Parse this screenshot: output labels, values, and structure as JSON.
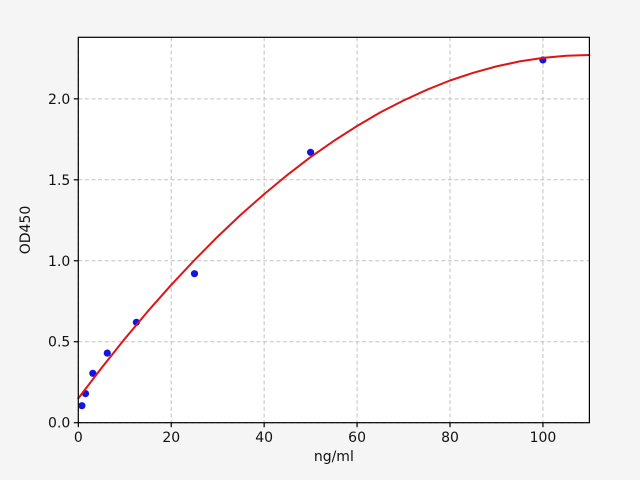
{
  "chart_data": {
    "type": "scatter",
    "title": "",
    "xlabel": "ng/ml",
    "ylabel": "OD450",
    "xlim": [
      0,
      110
    ],
    "ylim": [
      0,
      2.38
    ],
    "xticks": [
      0,
      20,
      40,
      60,
      80,
      100
    ],
    "xtick_labels": [
      "0",
      "20",
      "40",
      "60",
      "80",
      "100"
    ],
    "yticks": [
      0.0,
      0.5,
      1.0,
      1.5,
      2.0
    ],
    "ytick_labels": [
      "0.0",
      "0.5",
      "1.0",
      "1.5",
      "2.0"
    ],
    "grid": true,
    "grid_style": "dashed",
    "legend": "none",
    "series": [
      {
        "name": "standard-points",
        "type": "scatter",
        "marker": "circle",
        "color": "#1515dd",
        "x": [
          0.78,
          1.56,
          3.12,
          6.25,
          12.5,
          25,
          50,
          100
        ],
        "y": [
          0.105,
          0.18,
          0.305,
          0.43,
          0.62,
          0.92,
          1.67,
          2.24
        ]
      },
      {
        "name": "fit-curve",
        "type": "line",
        "color": "#dd1515",
        "x": [
          0,
          5,
          10,
          15,
          20,
          25,
          30,
          35,
          40,
          45,
          50,
          55,
          60,
          65,
          70,
          75,
          80,
          85,
          90,
          95,
          100,
          105,
          110
        ],
        "y": [
          0.15,
          0.338,
          0.518,
          0.689,
          0.851,
          1.004,
          1.149,
          1.285,
          1.412,
          1.53,
          1.64,
          1.74,
          1.832,
          1.916,
          1.99,
          2.056,
          2.113,
          2.161,
          2.2,
          2.231,
          2.253,
          2.266,
          2.271
        ]
      }
    ]
  },
  "colors": {
    "figure_bg": "#f5f5f5",
    "plot_bg": "#ffffff",
    "grid": "#c2c2c2",
    "spine": "#000000",
    "tick": "#000000"
  }
}
